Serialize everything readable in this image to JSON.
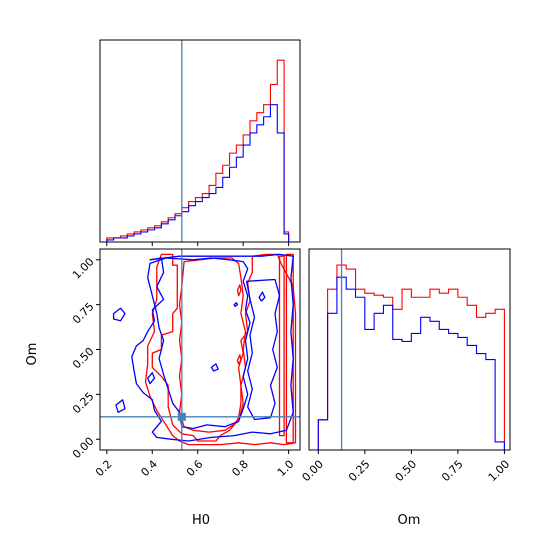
{
  "chart_data": {
    "type": "corner",
    "parameters": [
      "H0",
      "Om"
    ],
    "truth": {
      "H0": 0.53,
      "Om": 0.125
    },
    "colors": {
      "series_a": "#ff0000",
      "series_b": "#0000ff",
      "truth": "#4682b4"
    },
    "grid": false,
    "legend": "none",
    "h0_hist": {
      "xlim": [
        0.17,
        1.05
      ],
      "bin_edges": [
        0.2,
        0.23,
        0.26,
        0.29,
        0.32,
        0.35,
        0.38,
        0.41,
        0.44,
        0.47,
        0.5,
        0.53,
        0.56,
        0.59,
        0.62,
        0.65,
        0.68,
        0.71,
        0.74,
        0.77,
        0.8,
        0.83,
        0.86,
        0.89,
        0.92,
        0.95,
        0.98,
        1.0
      ],
      "series": [
        {
          "name": "",
          "color": "#ff0000",
          "values": [
            0.02,
            0.02,
            0.03,
            0.04,
            0.05,
            0.06,
            0.07,
            0.08,
            0.1,
            0.12,
            0.14,
            0.17,
            0.2,
            0.22,
            0.24,
            0.28,
            0.34,
            0.38,
            0.44,
            0.48,
            0.53,
            0.6,
            0.64,
            0.68,
            0.78,
            0.9,
            0.05
          ]
        },
        {
          "name": "",
          "color": "#0000ff",
          "values": [
            0.01,
            0.02,
            0.02,
            0.03,
            0.04,
            0.05,
            0.06,
            0.07,
            0.09,
            0.11,
            0.13,
            0.15,
            0.18,
            0.2,
            0.22,
            0.24,
            0.27,
            0.32,
            0.37,
            0.42,
            0.48,
            0.54,
            0.58,
            0.62,
            0.68,
            0.54,
            0.04
          ]
        }
      ]
    },
    "om_hist": {
      "xlim": [
        -0.05,
        1.03
      ],
      "xticks": [
        "0.00",
        "0.25",
        "0.50",
        "0.75",
        "1.00"
      ],
      "bin_edges": [
        0.0,
        0.05,
        0.1,
        0.15,
        0.2,
        0.25,
        0.3,
        0.35,
        0.4,
        0.45,
        0.5,
        0.55,
        0.6,
        0.65,
        0.7,
        0.75,
        0.8,
        0.85,
        0.9,
        0.95,
        1.0
      ],
      "series": [
        {
          "name": "",
          "color": "#ff0000",
          "values": [
            0.15,
            0.8,
            0.92,
            0.9,
            0.8,
            0.78,
            0.77,
            0.76,
            0.7,
            0.8,
            0.76,
            0.76,
            0.8,
            0.78,
            0.8,
            0.76,
            0.72,
            0.66,
            0.68,
            0.7
          ]
        },
        {
          "name": "",
          "color": "#0000ff",
          "values": [
            0.15,
            0.68,
            0.86,
            0.8,
            0.76,
            0.6,
            0.68,
            0.72,
            0.55,
            0.54,
            0.58,
            0.66,
            0.64,
            0.6,
            0.58,
            0.56,
            0.52,
            0.48,
            0.45,
            0.04
          ]
        }
      ]
    },
    "joint": {
      "xlabel": "H0",
      "ylabel": "Om",
      "xlim": [
        0.17,
        1.05
      ],
      "ylim": [
        -0.06,
        1.06
      ],
      "xticks": [
        "0.2",
        "0.4",
        "0.6",
        "0.8",
        "1.0"
      ],
      "yticks": [
        "0.00",
        "0.25",
        "0.50",
        "0.75",
        "1.00"
      ],
      "contours": [
        {
          "color": "#ff0000",
          "points": [
            [
              0.44,
              1.03
            ],
            [
              0.49,
              1.03
            ],
            [
              0.49,
              0.97
            ],
            [
              0.51,
              0.97
            ],
            [
              0.51,
              0.73
            ],
            [
              0.49,
              0.7
            ],
            [
              0.49,
              0.6
            ],
            [
              0.44,
              0.58
            ],
            [
              0.44,
              0.5
            ],
            [
              0.4,
              0.48
            ],
            [
              0.4,
              0.4
            ],
            [
              0.44,
              0.35
            ],
            [
              0.47,
              0.3
            ],
            [
              0.47,
              0.18
            ],
            [
              0.49,
              0.08
            ],
            [
              0.53,
              0.03
            ],
            [
              0.58,
              0.02
            ],
            [
              0.6,
              -0.01
            ],
            [
              0.68,
              -0.01
            ],
            [
              0.7,
              0.02
            ],
            [
              0.74,
              0.05
            ],
            [
              0.76,
              0.08
            ],
            [
              0.78,
              0.12
            ],
            [
              0.79,
              0.2
            ],
            [
              0.79,
              0.3
            ],
            [
              0.78,
              0.4
            ],
            [
              0.8,
              0.48
            ],
            [
              0.79,
              0.55
            ],
            [
              0.82,
              0.6
            ],
            [
              0.81,
              0.7
            ],
            [
              0.83,
              0.77
            ],
            [
              0.82,
              0.87
            ],
            [
              0.84,
              0.93
            ],
            [
              0.84,
              1.02
            ],
            [
              0.9,
              1.03
            ],
            [
              0.95,
              1.03
            ],
            [
              0.97,
              0.97
            ],
            [
              1.0,
              0.9
            ],
            [
              1.02,
              0.85
            ],
            [
              1.03,
              0.7
            ],
            [
              1.03,
              0.5
            ],
            [
              1.03,
              0.3
            ],
            [
              1.03,
              0.1
            ],
            [
              1.03,
              -0.02
            ],
            [
              0.98,
              -0.03
            ],
            [
              0.92,
              -0.02
            ],
            [
              0.85,
              -0.03
            ],
            [
              0.78,
              -0.02
            ],
            [
              0.7,
              -0.03
            ],
            [
              0.62,
              -0.03
            ],
            [
              0.56,
              -0.03
            ],
            [
              0.52,
              -0.01
            ],
            [
              0.49,
              0.02
            ],
            [
              0.47,
              0.06
            ],
            [
              0.45,
              0.1
            ],
            [
              0.42,
              0.16
            ],
            [
              0.39,
              0.24
            ],
            [
              0.37,
              0.32
            ],
            [
              0.38,
              0.42
            ],
            [
              0.38,
              0.52
            ],
            [
              0.41,
              0.6
            ],
            [
              0.4,
              0.7
            ],
            [
              0.42,
              0.78
            ],
            [
              0.42,
              0.86
            ],
            [
              0.42,
              0.96
            ]
          ]
        },
        {
          "color": "#ff0000",
          "points": [
            [
              0.54,
              0.99
            ],
            [
              0.68,
              1.01
            ],
            [
              0.75,
              1.01
            ],
            [
              0.78,
              0.98
            ],
            [
              0.79,
              0.9
            ],
            [
              0.8,
              0.8
            ],
            [
              0.79,
              0.7
            ],
            [
              0.81,
              0.6
            ],
            [
              0.8,
              0.5
            ],
            [
              0.81,
              0.4
            ],
            [
              0.79,
              0.3
            ],
            [
              0.8,
              0.2
            ],
            [
              0.78,
              0.1
            ],
            [
              0.72,
              0.05
            ],
            [
              0.65,
              0.04
            ],
            [
              0.58,
              0.05
            ],
            [
              0.54,
              0.07
            ],
            [
              0.52,
              0.15
            ],
            [
              0.53,
              0.25
            ],
            [
              0.52,
              0.35
            ],
            [
              0.53,
              0.45
            ],
            [
              0.52,
              0.55
            ],
            [
              0.53,
              0.65
            ],
            [
              0.52,
              0.75
            ],
            [
              0.53,
              0.85
            ]
          ]
        },
        {
          "color": "#ff0000",
          "points": [
            [
              0.96,
              1.02
            ],
            [
              0.98,
              1.02
            ],
            [
              0.98,
              0.02
            ],
            [
              0.96,
              0.02
            ]
          ]
        },
        {
          "color": "#ff0000",
          "points": [
            [
              0.99,
              1.03
            ],
            [
              1.02,
              1.03
            ],
            [
              1.02,
              -0.02
            ],
            [
              0.99,
              -0.02
            ]
          ]
        },
        {
          "color": "#ff0000",
          "points": [
            [
              0.775,
              0.83
            ],
            [
              0.785,
              0.86
            ],
            [
              0.79,
              0.83
            ],
            [
              0.78,
              0.8
            ]
          ]
        },
        {
          "color": "#ff0000",
          "points": [
            [
              0.775,
              0.44
            ],
            [
              0.785,
              0.47
            ],
            [
              0.79,
              0.44
            ],
            [
              0.78,
              0.42
            ]
          ]
        },
        {
          "color": "#0000ff",
          "points": [
            [
              0.39,
              0.98
            ],
            [
              0.46,
              1.01
            ],
            [
              0.58,
              1.0
            ],
            [
              0.66,
              1.01
            ],
            [
              0.74,
              1.0
            ],
            [
              0.8,
              0.99
            ],
            [
              0.82,
              0.95
            ],
            [
              0.8,
              0.88
            ],
            [
              0.82,
              0.8
            ],
            [
              0.81,
              0.72
            ],
            [
              0.83,
              0.65
            ],
            [
              0.81,
              0.55
            ],
            [
              0.82,
              0.45
            ],
            [
              0.8,
              0.35
            ],
            [
              0.82,
              0.25
            ],
            [
              0.8,
              0.17
            ],
            [
              0.78,
              0.1
            ],
            [
              0.72,
              0.07
            ],
            [
              0.64,
              0.08
            ],
            [
              0.58,
              0.06
            ],
            [
              0.53,
              0.07
            ],
            [
              0.52,
              0.15
            ],
            [
              0.49,
              0.2
            ],
            [
              0.47,
              0.28
            ],
            [
              0.45,
              0.36
            ],
            [
              0.43,
              0.45
            ],
            [
              0.45,
              0.55
            ],
            [
              0.43,
              0.62
            ],
            [
              0.42,
              0.7
            ],
            [
              0.4,
              0.8
            ],
            [
              0.38,
              0.9
            ]
          ]
        },
        {
          "color": "#0000ff",
          "points": [
            [
              0.39,
              1.0
            ],
            [
              0.44,
              1.01
            ],
            [
              0.45,
              0.93
            ],
            [
              0.42,
              0.85
            ],
            [
              0.45,
              0.78
            ],
            [
              0.4,
              0.72
            ],
            [
              0.41,
              0.66
            ],
            [
              0.38,
              0.6
            ],
            [
              0.36,
              0.55
            ],
            [
              0.33,
              0.52
            ],
            [
              0.31,
              0.46
            ],
            [
              0.32,
              0.38
            ],
            [
              0.33,
              0.31
            ],
            [
              0.36,
              0.26
            ],
            [
              0.4,
              0.22
            ],
            [
              0.41,
              0.16
            ],
            [
              0.44,
              0.1
            ],
            [
              0.4,
              0.04
            ],
            [
              0.42,
              0.01
            ],
            [
              0.48,
              0.0
            ],
            [
              0.56,
              -0.01
            ],
            [
              0.66,
              0.01
            ],
            [
              0.76,
              0.02
            ],
            [
              0.84,
              0.04
            ],
            [
              0.92,
              0.03
            ],
            [
              0.99,
              0.05
            ],
            [
              1.02,
              0.15
            ],
            [
              1.01,
              0.3
            ],
            [
              1.02,
              0.45
            ],
            [
              1.01,
              0.6
            ],
            [
              1.02,
              0.75
            ],
            [
              1.01,
              0.9
            ],
            [
              1.02,
              1.02
            ],
            [
              0.96,
              1.03
            ],
            [
              0.88,
              1.02
            ],
            [
              0.76,
              1.02
            ],
            [
              0.64,
              1.02
            ],
            [
              0.52,
              1.02
            ]
          ]
        },
        {
          "color": "#0000ff",
          "points": [
            [
              0.815,
              0.88
            ],
            [
              0.94,
              0.89
            ],
            [
              0.96,
              0.8
            ],
            [
              0.94,
              0.7
            ],
            [
              0.95,
              0.6
            ],
            [
              0.93,
              0.5
            ],
            [
              0.95,
              0.4
            ],
            [
              0.92,
              0.3
            ],
            [
              0.94,
              0.2
            ],
            [
              0.92,
              0.12
            ],
            [
              0.85,
              0.11
            ],
            [
              0.82,
              0.18
            ],
            [
              0.84,
              0.28
            ],
            [
              0.82,
              0.38
            ],
            [
              0.84,
              0.48
            ],
            [
              0.83,
              0.58
            ],
            [
              0.85,
              0.68
            ],
            [
              0.83,
              0.78
            ]
          ]
        },
        {
          "color": "#0000ff",
          "points": [
            [
              0.23,
              0.7
            ],
            [
              0.26,
              0.73
            ],
            [
              0.28,
              0.7
            ],
            [
              0.26,
              0.66
            ],
            [
              0.23,
              0.67
            ]
          ]
        },
        {
          "color": "#0000ff",
          "points": [
            [
              0.24,
              0.19
            ],
            [
              0.27,
              0.22
            ],
            [
              0.28,
              0.17
            ],
            [
              0.25,
              0.15
            ]
          ]
        },
        {
          "color": "#0000ff",
          "points": [
            [
              0.38,
              0.34
            ],
            [
              0.4,
              0.37
            ],
            [
              0.41,
              0.34
            ],
            [
              0.39,
              0.31
            ]
          ]
        },
        {
          "color": "#0000ff",
          "points": [
            [
              0.66,
              0.4
            ],
            [
              0.68,
              0.42
            ],
            [
              0.69,
              0.39
            ],
            [
              0.67,
              0.38
            ]
          ]
        },
        {
          "color": "#0000ff",
          "points": [
            [
              0.76,
              0.75
            ],
            [
              0.77,
              0.76
            ],
            [
              0.775,
              0.75
            ],
            [
              0.765,
              0.74
            ]
          ]
        },
        {
          "color": "#0000ff",
          "points": [
            [
              0.87,
              0.79
            ],
            [
              0.885,
              0.82
            ],
            [
              0.895,
              0.79
            ],
            [
              0.88,
              0.77
            ]
          ]
        }
      ]
    }
  }
}
